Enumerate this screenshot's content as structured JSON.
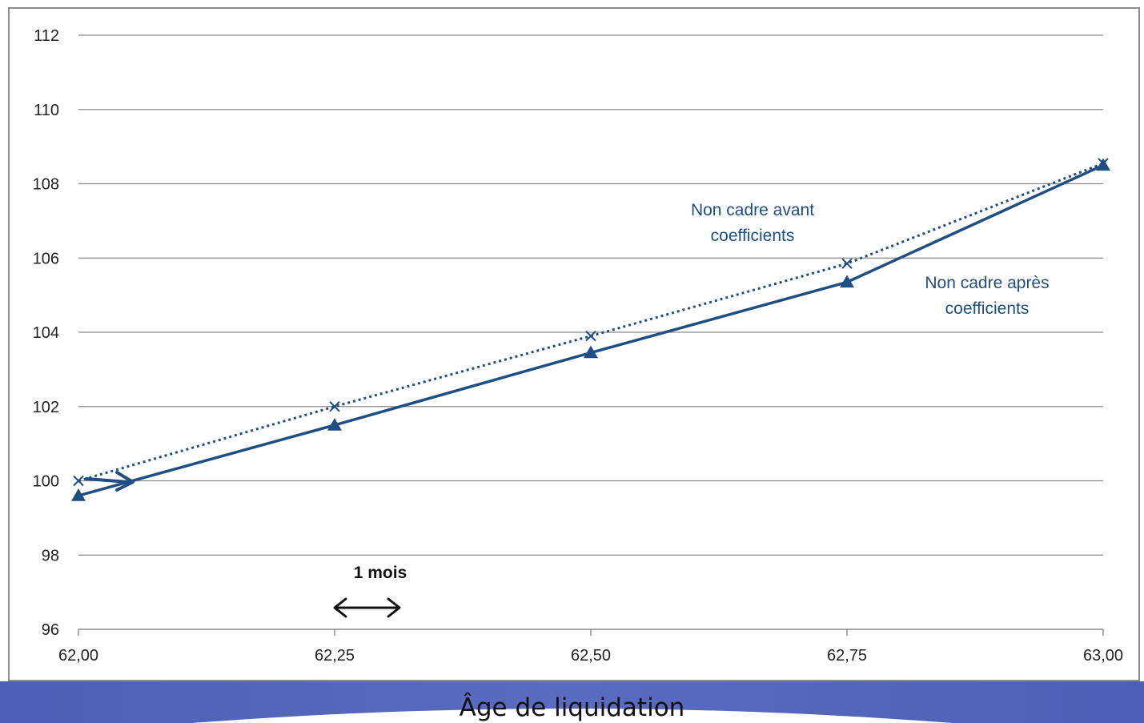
{
  "chart_data": {
    "type": "line",
    "xlabel": "Âge de liquidation",
    "ylabel": "",
    "x": [
      62.0,
      62.25,
      62.5,
      62.75,
      63.0
    ],
    "x_tick_labels": [
      "62,00",
      "62,25",
      "62,50",
      "62,75",
      "63,00"
    ],
    "y_ticks": [
      96,
      98,
      100,
      102,
      104,
      106,
      108,
      110,
      112
    ],
    "ylim": [
      96,
      112
    ],
    "xlim": [
      62.0,
      63.0
    ],
    "grid": "horizontal",
    "series": [
      {
        "name": "Non cadre avant coefficients",
        "label_lines": [
          "Non cadre avant",
          "coefficients"
        ],
        "style": "dotted",
        "marker": "x",
        "values": [
          100.0,
          102.0,
          103.9,
          105.85,
          108.55
        ]
      },
      {
        "name": "Non cadre après coefficients",
        "label_lines": [
          "Non cadre après",
          "coefficients"
        ],
        "style": "solid",
        "marker": "triangle",
        "values": [
          99.6,
          101.5,
          103.45,
          105.35,
          108.5
        ]
      }
    ],
    "annotations": {
      "interval_label": "1 mois"
    },
    "colors": {
      "series": "#1f4e82",
      "grid": "#8a8a8a",
      "band": "#3f55a8"
    }
  }
}
